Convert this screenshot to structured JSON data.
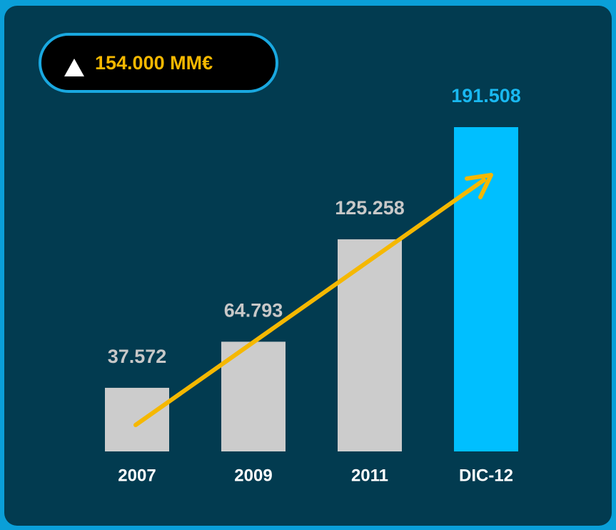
{
  "chart_data": {
    "type": "bar",
    "annotation": "154.000 MM€",
    "categories": [
      "2007",
      "2009",
      "2011",
      "DIC-12"
    ],
    "values": [
      37572,
      64793,
      125258,
      191508
    ],
    "value_labels": [
      "37.572",
      "64.793",
      "125.258",
      "191.508"
    ],
    "colors": [
      "#cccccc",
      "#cccccc",
      "#cccccc",
      "#00bfff"
    ]
  }
}
